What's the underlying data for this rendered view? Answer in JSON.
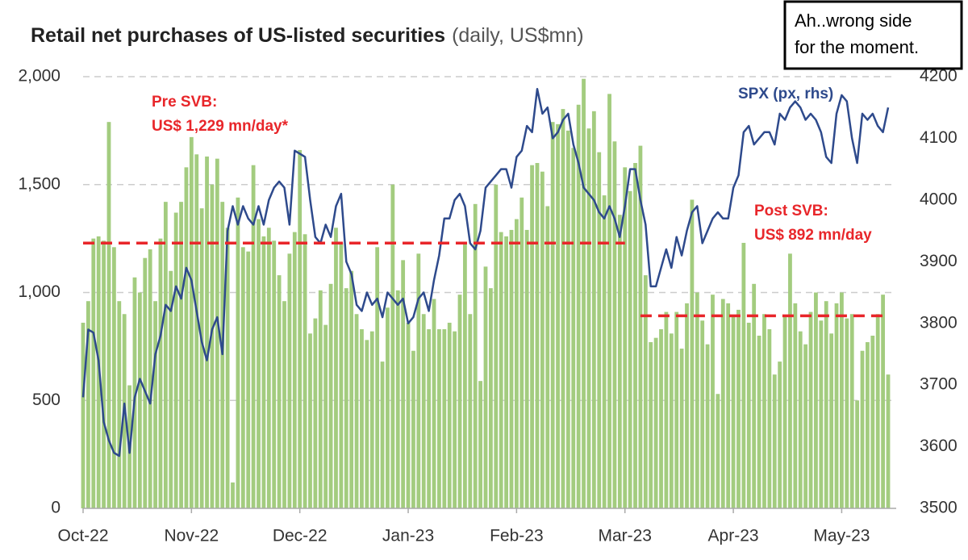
{
  "chart_data": {
    "type": "bar_line",
    "title": "Retail net purchases of US-listed securities",
    "subtitle": "(daily, US$mn)",
    "annotation": [
      "Ah..wrong side",
      "for the moment."
    ],
    "categories": [
      "Oct-22",
      null,
      null,
      null,
      null,
      null,
      null,
      null,
      null,
      null,
      null,
      null,
      null,
      null,
      null,
      null,
      null,
      null,
      null,
      null,
      null,
      "Nov-22",
      null,
      null,
      null,
      null,
      null,
      null,
      null,
      null,
      null,
      null,
      null,
      null,
      null,
      null,
      null,
      null,
      null,
      null,
      null,
      null,
      "Dec-22",
      null,
      null,
      null,
      null,
      null,
      null,
      null,
      null,
      null,
      null,
      null,
      null,
      null,
      null,
      null,
      null,
      null,
      null,
      null,
      null,
      "Jan-23",
      null,
      null,
      null,
      null,
      null,
      null,
      null,
      null,
      null,
      null,
      null,
      null,
      null,
      null,
      null,
      null,
      null,
      null,
      null,
      null,
      "Feb-23",
      null,
      null,
      null,
      null,
      null,
      null,
      null,
      null,
      null,
      null,
      null,
      null,
      null,
      null,
      null,
      null,
      null,
      null,
      null,
      null,
      "Mar-23",
      null,
      null,
      null,
      null,
      null,
      null,
      null,
      null,
      null,
      null,
      null,
      null,
      null,
      null,
      null,
      null,
      null,
      null,
      null,
      null,
      "Apr-23",
      null,
      null,
      null,
      null,
      null,
      null,
      null,
      null,
      null,
      null,
      null,
      null,
      null,
      null,
      null,
      null,
      null,
      null,
      null,
      null,
      "May-23",
      null,
      null,
      null,
      null,
      null,
      null,
      null,
      null,
      null
    ],
    "series": [
      {
        "color": "#a3cc7f",
        "values": [
          860,
          960,
          1250,
          1260,
          1240,
          1790,
          1210,
          960,
          900,
          570,
          1070,
          1000,
          1160,
          1200,
          960,
          1250,
          1420,
          1100,
          1370,
          1420,
          1580,
          1720,
          1640,
          1390,
          1630,
          1500,
          1620,
          1420,
          1300,
          120,
          1440,
          1210,
          1190,
          1590,
          1340,
          1260,
          1300,
          1240,
          1080,
          960,
          1180,
          1280,
          1660,
          1270,
          810,
          880,
          1010,
          850,
          1040,
          1300,
          1230,
          1020,
          1100,
          900,
          830,
          780,
          820,
          1210,
          680,
          930,
          1500,
          1010,
          1150,
          860,
          730,
          1180,
          900,
          830,
          970,
          830,
          830,
          860,
          820,
          990,
          1230,
          900,
          1410,
          590,
          1120,
          1020,
          1500,
          1280,
          1260,
          1290,
          1340,
          1440,
          1290,
          1590,
          1600,
          1560,
          1400,
          1790,
          1780,
          1850,
          1750,
          1670,
          1870,
          1990,
          1760,
          1840,
          1650,
          1450,
          1920,
          1700,
          1360,
          1580,
          1470,
          1600,
          1680,
          1080,
          770,
          790,
          830,
          910,
          810,
          910,
          740,
          950,
          1430,
          1000,
          870,
          760,
          990,
          530,
          970,
          950,
          890,
          920,
          1230,
          860,
          1040,
          800,
          900,
          830,
          620,
          680,
          890,
          1180,
          950,
          820,
          760,
          910,
          1000,
          870,
          960,
          810,
          950,
          1000,
          880,
          900,
          500,
          730,
          770,
          800,
          900,
          990,
          620
        ]
      },
      {
        "name": "SPX (px, rhs)",
        "axis": "y2",
        "color": "#2e4a8c",
        "values": [
          3680,
          3790,
          3785,
          3740,
          3640,
          3610,
          3590,
          3585,
          3670,
          3590,
          3680,
          3710,
          3690,
          3670,
          3750,
          3780,
          3830,
          3820,
          3860,
          3840,
          3890,
          3870,
          3820,
          3770,
          3740,
          3790,
          3810,
          3750,
          3950,
          3990,
          3960,
          3990,
          3970,
          3960,
          3990,
          3960,
          4000,
          4020,
          4030,
          4020,
          3960,
          4080,
          4075,
          4070,
          4000,
          3940,
          3930,
          3960,
          3940,
          3990,
          4010,
          3900,
          3880,
          3830,
          3820,
          3850,
          3830,
          3840,
          3810,
          3850,
          3840,
          3830,
          3840,
          3800,
          3810,
          3840,
          3850,
          3820,
          3870,
          3910,
          3970,
          3970,
          4000,
          4010,
          3990,
          3930,
          3920,
          3950,
          4020,
          4030,
          4040,
          4050,
          4050,
          4020,
          4070,
          4080,
          4120,
          4110,
          4180,
          4140,
          4150,
          4100,
          4110,
          4130,
          4140,
          4090,
          4060,
          4020,
          4010,
          4000,
          3980,
          3970,
          3990,
          3970,
          3940,
          3990,
          4050,
          4050,
          4000,
          3960,
          3860,
          3860,
          3890,
          3920,
          3890,
          3940,
          3910,
          3950,
          3980,
          3990,
          3930,
          3950,
          3970,
          3980,
          3970,
          3970,
          4020,
          4040,
          4110,
          4120,
          4090,
          4100,
          4110,
          4110,
          4090,
          4140,
          4130,
          4150,
          4160,
          4150,
          4130,
          4140,
          4130,
          4110,
          4070,
          4060,
          4140,
          4170,
          4160,
          4100,
          4060,
          4140,
          4130,
          4140,
          4120,
          4110,
          4150
        ]
      }
    ],
    "reference_lines": [
      {
        "label": [
          "Pre SVB:",
          "US$ 1,229 mn/day*"
        ],
        "value": 1229,
        "start": 0,
        "end": 105,
        "color": "#e8262a"
      },
      {
        "label": [
          "Post SVB:",
          "US$ 892 mn/day"
        ],
        "value": 892,
        "start": 108,
        "end": 156,
        "color": "#e8262a"
      }
    ],
    "ylim": [
      0,
      2000
    ],
    "yticks": [
      0,
      500,
      {
        "value": 1000,
        "label": "1,000"
      },
      {
        "value": 1500,
        "label": "1,500"
      },
      {
        "value": 2000,
        "label": "2,000"
      }
    ],
    "y2lim": [
      3500,
      4200
    ],
    "y2ticks": [
      3500,
      3600,
      3700,
      3800,
      3900,
      4000,
      4100,
      4200
    ],
    "grid": true
  }
}
